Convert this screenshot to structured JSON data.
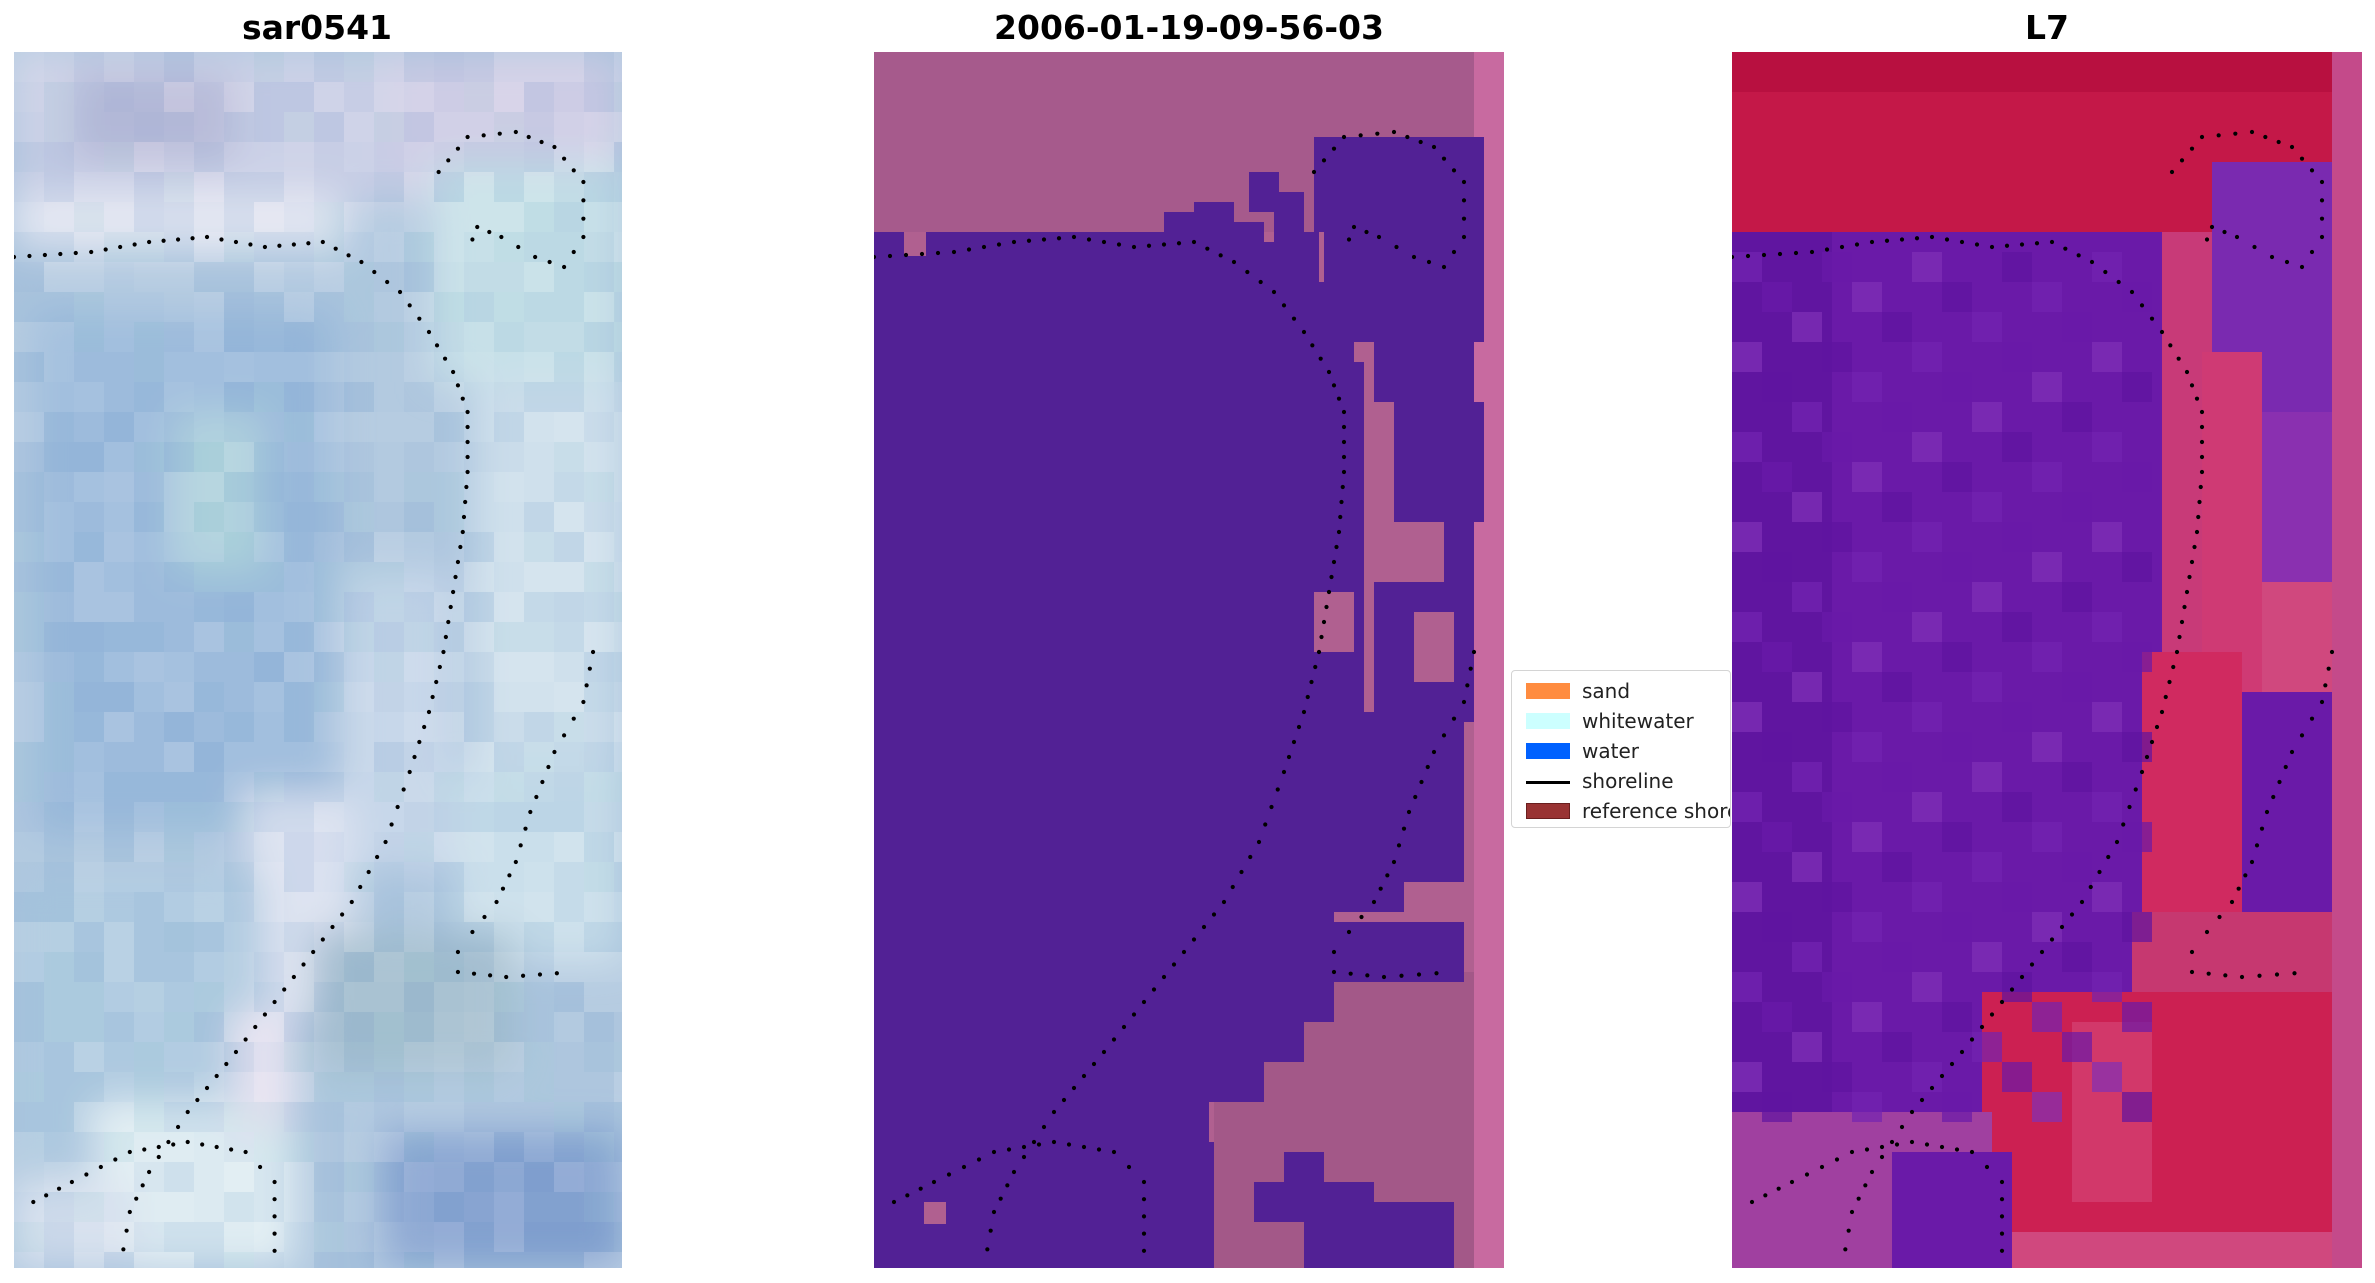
{
  "panels": [
    {
      "title": "sar0541"
    },
    {
      "title": "2006-01-19-09-56-03"
    },
    {
      "title": "L7"
    }
  ],
  "legend": {
    "items": [
      {
        "label": "sand",
        "kind": "patch",
        "color": "#ff8c40"
      },
      {
        "label": "whitewater",
        "kind": "patch",
        "color": "#ccffff"
      },
      {
        "label": "water",
        "kind": "patch",
        "color": "#0061ff"
      },
      {
        "label": "shoreline",
        "kind": "line",
        "color": "#000000"
      },
      {
        "label": "reference shoreline",
        "kind": "patch",
        "color": "#993333"
      }
    ]
  },
  "colors": {
    "classified_water": "#522195",
    "classified_land": "#b06090",
    "l7_red": "#c41848",
    "l7_purple": "#6a1aa8",
    "rgb_blue": "#9bbad8",
    "rgb_white": "#e8eef4",
    "shoreline_dots": "#000000"
  }
}
